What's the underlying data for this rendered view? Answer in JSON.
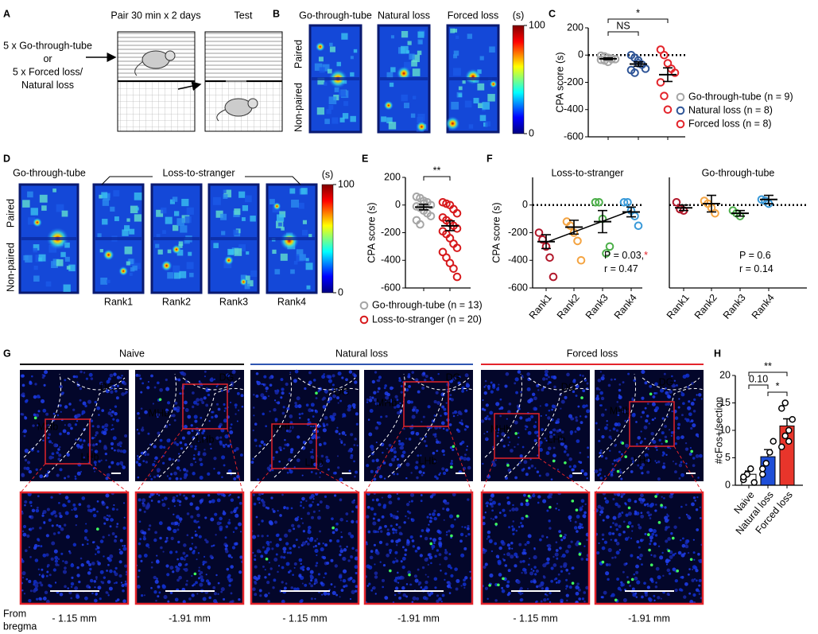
{
  "panel_letters": [
    "A",
    "B",
    "C",
    "D",
    "E",
    "F",
    "G",
    "H"
  ],
  "panel_a": {
    "schedule": "Pair 30 min x 2 days",
    "test": "Test",
    "groups": [
      "5 x Go-through-tube",
      "or",
      "5 x Forced loss/",
      "Natural loss"
    ]
  },
  "panel_b": {
    "columns": [
      "Go-through-tube",
      "Natural loss",
      "Forced loss"
    ],
    "rows": [
      "Paired",
      "Non-paired"
    ],
    "colorbar_unit": "(s)",
    "colorbar_ticks": [
      100,
      0
    ]
  },
  "panel_d": {
    "control": "Go-through-tube",
    "group": "Loss-to-stranger",
    "rows": [
      "Paired",
      "Non-paired"
    ],
    "ranks": [
      "Rank1",
      "Rank2",
      "Rank3",
      "Rank4"
    ],
    "colorbar_unit": "(s)",
    "colorbar_ticks": [
      100,
      0
    ]
  },
  "panel_g": {
    "groups": [
      "Naive",
      "Natural loss",
      "Forced loss"
    ],
    "regions": [
      "DG",
      "MHb",
      "LHb"
    ],
    "bregma_label": [
      "From",
      "bregma"
    ],
    "levels": [
      "- 1.15 mm",
      "-1.91 mm",
      "- 1.15 mm",
      "-1.91 mm",
      "- 1.15 mm",
      "-1.91 mm"
    ]
  },
  "chart_data": [
    {
      "type": "dotplot",
      "ylabel": "CPA score (s)",
      "ylim": [
        -600,
        200
      ],
      "yticks": [
        -600,
        -400,
        -200,
        0,
        200
      ],
      "zero_line": true,
      "series": [
        {
          "name": "Go-through-tube (n = 9)",
          "color": "#a6a6a6",
          "points": [
            -5,
            -10,
            -20,
            -25,
            -30,
            -35,
            -40,
            -50,
            -30
          ],
          "mean": -27,
          "sem": 6
        },
        {
          "name": "Natural loss (n = 8)",
          "color": "#2f5597",
          "points": [
            0,
            -20,
            -40,
            -70,
            -100,
            -110,
            -130,
            -60
          ],
          "mean": -66,
          "sem": 16
        },
        {
          "name": "Forced loss (n = 8)",
          "color": "#e3242b",
          "points": [
            40,
            0,
            -60,
            -100,
            -130,
            -200,
            -300,
            -400
          ],
          "mean": -144,
          "sem": 50
        }
      ],
      "annotations": [
        {
          "text": "NS",
          "color": "#000000"
        },
        {
          "text": "*",
          "color": "#e3242b"
        }
      ]
    },
    {
      "type": "dotplot",
      "ylabel": "CPA score (s)",
      "ylim": [
        -600,
        200
      ],
      "yticks": [
        -600,
        -400,
        -200,
        0,
        200
      ],
      "zero_line": false,
      "series": [
        {
          "name": "Go-through-tube (n = 13)",
          "color": "#a6a6a6",
          "points": [
            60,
            50,
            30,
            20,
            0,
            -10,
            -20,
            -40,
            -60,
            -80,
            -110,
            -140,
            10
          ],
          "mean": -15,
          "sem": 20
        },
        {
          "name": "Loss-to-stranger (n = 20)",
          "color": "#d7191c",
          "points": [
            20,
            10,
            0,
            -30,
            -60,
            -90,
            -110,
            -130,
            -150,
            -170,
            -190,
            -210,
            -240,
            -280,
            -310,
            -340,
            -380,
            -420,
            -460,
            -520
          ],
          "mean": -150,
          "sem": 35
        }
      ],
      "annotations": [
        {
          "text": "**",
          "color": "#e3242b"
        }
      ]
    },
    {
      "type": "dotplot",
      "title": "Loss-to-stranger",
      "ylabel": "CPA score (s)",
      "ylim": [
        -600,
        200
      ],
      "yticks": [
        -600,
        -400,
        -200,
        0
      ],
      "zero_line": true,
      "categories": [
        "Rank1",
        "Rank2",
        "Rank3",
        "Rank4"
      ],
      "series": [
        {
          "color": "#b2182b",
          "points": [
            -200,
            -250,
            -300,
            -380,
            -520
          ],
          "mean": -265,
          "sem": 50
        },
        {
          "color": "#f4a442",
          "points": [
            -120,
            -150,
            -200,
            -260,
            -400
          ],
          "mean": -160,
          "sem": 50
        },
        {
          "color": "#4daf4a",
          "points": [
            20,
            20,
            -100,
            -350,
            -300
          ],
          "mean": -120,
          "sem": 80
        },
        {
          "color": "#3a9ad9",
          "points": [
            20,
            20,
            -40,
            -80,
            -150
          ],
          "mean": -50,
          "sem": 35
        }
      ],
      "trend": [
        -270,
        -40
      ],
      "stats": [
        [
          {
            "text": "P = 0.03,",
            "color": "#000000"
          },
          {
            "text": "*",
            "color": "#e3242b"
          }
        ],
        [
          {
            "text": "r = 0.47",
            "color": "#000000"
          }
        ]
      ]
    },
    {
      "type": "dotplot",
      "title": "Go-through-tube",
      "ylim": [
        -600,
        200
      ],
      "zero_line": true,
      "categories": [
        "Rank1",
        "Rank2",
        "Rank3",
        "Rank4"
      ],
      "series": [
        {
          "color": "#b2182b",
          "points": [
            20,
            -30,
            -40
          ],
          "mean": -20,
          "sem": 20
        },
        {
          "color": "#f4a442",
          "points": [
            30,
            10,
            -20,
            -60
          ],
          "mean": 10,
          "sem": 60
        },
        {
          "color": "#4daf4a",
          "points": [
            -40,
            -60,
            -80
          ],
          "mean": -60,
          "sem": 20
        },
        {
          "color": "#3a9ad9",
          "points": [
            40,
            30,
            10
          ],
          "mean": 40,
          "sem": 30
        }
      ],
      "stats": [
        [
          {
            "text": "P = 0.6",
            "color": "#000000"
          }
        ],
        [
          {
            "text": "r = 0.14",
            "color": "#000000"
          }
        ]
      ]
    },
    {
      "type": "bar",
      "ylabel": "#cFos+/section",
      "ylim": [
        0,
        20
      ],
      "yticks": [
        0,
        5,
        10,
        15,
        20
      ],
      "categories": [
        "Naive",
        "Natural loss",
        "Forced loss"
      ],
      "values": [
        2,
        5.2,
        10.8
      ],
      "errors": [
        0.6,
        1.3,
        1.3
      ],
      "colors": [
        "#ffffff",
        "#1f4fd8",
        "#e8352b"
      ],
      "points": [
        [
          1,
          2,
          3,
          0.5,
          1.5
        ],
        [
          2,
          4,
          6,
          8,
          3
        ],
        [
          7,
          9,
          10,
          12,
          14,
          15,
          8
        ]
      ],
      "annotations": [
        {
          "text": "**",
          "color": "#e3242b"
        },
        {
          "text": "0.10",
          "color": "#000000"
        },
        {
          "text": "*",
          "color": "#e3242b"
        }
      ]
    }
  ]
}
